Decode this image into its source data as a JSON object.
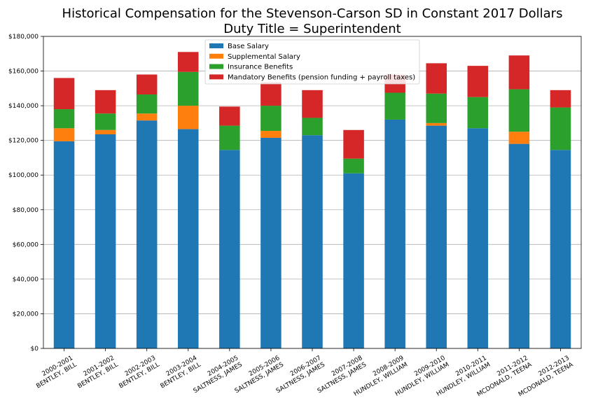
{
  "chart_data": {
    "type": "bar",
    "stacked": true,
    "title": "Historical Compensation for the Stevenson-Carson SD in Constant 2017 Dollars",
    "subtitle": "Duty Title = Superintendent",
    "xlabel": "",
    "ylabel": "",
    "ylim": [
      0,
      180000
    ],
    "yticks": [
      "$0",
      "$20,000",
      "$40,000",
      "$60,000",
      "$80,000",
      "$100,000",
      "$120,000",
      "$140,000",
      "$160,000",
      "$180,000"
    ],
    "grid": "horizontal",
    "legend_position": "top-center",
    "categories": [
      [
        "2000-2001",
        "BENTLEY, BILL"
      ],
      [
        "2001-2002",
        "BENTLEY, BILL"
      ],
      [
        "2002-2003",
        "BENTLEY, BILL"
      ],
      [
        "2003-2004",
        "BENTLEY, BILL"
      ],
      [
        "2004-2005",
        "SALTNESS, JAMES"
      ],
      [
        "2005-2006",
        "SALTNESS, JAMES"
      ],
      [
        "2006-2007",
        "SALTNESS, JAMES"
      ],
      [
        "2007-2008",
        "SALTNESS, JAMES"
      ],
      [
        "2008-2009",
        "HUNDLEY, WILLIAM"
      ],
      [
        "2009-2010",
        "HUNDLEY, WILLIAM"
      ],
      [
        "2010-2011",
        "HUNDLEY, WILLIAM"
      ],
      [
        "2011-2012",
        "MCDONALD, TEENA"
      ],
      [
        "2012-2013",
        "MCDONALD, TEENA"
      ]
    ],
    "series": [
      {
        "name": "Base Salary",
        "color": "#1f77b4",
        "values": [
          119500,
          123500,
          131500,
          126500,
          114500,
          121500,
          123000,
          101000,
          132000,
          128500,
          127000,
          118000,
          114500
        ]
      },
      {
        "name": "Supplemental Salary",
        "color": "#ff7f0e",
        "values": [
          7500,
          2500,
          4000,
          13500,
          0,
          4000,
          0,
          0,
          0,
          1500,
          0,
          7000,
          0
        ]
      },
      {
        "name": "Insurance Benefits",
        "color": "#2ca02c",
        "values": [
          11000,
          9500,
          11000,
          19500,
          14000,
          14500,
          10000,
          8500,
          15500,
          17000,
          18000,
          24500,
          24500
        ]
      },
      {
        "name": "Mandatory Benefits (pension funding + payroll taxes)",
        "color": "#d62728",
        "values": [
          18000,
          13500,
          11500,
          11500,
          11000,
          13500,
          16000,
          16500,
          10500,
          17500,
          18000,
          19500,
          10000
        ]
      }
    ]
  }
}
